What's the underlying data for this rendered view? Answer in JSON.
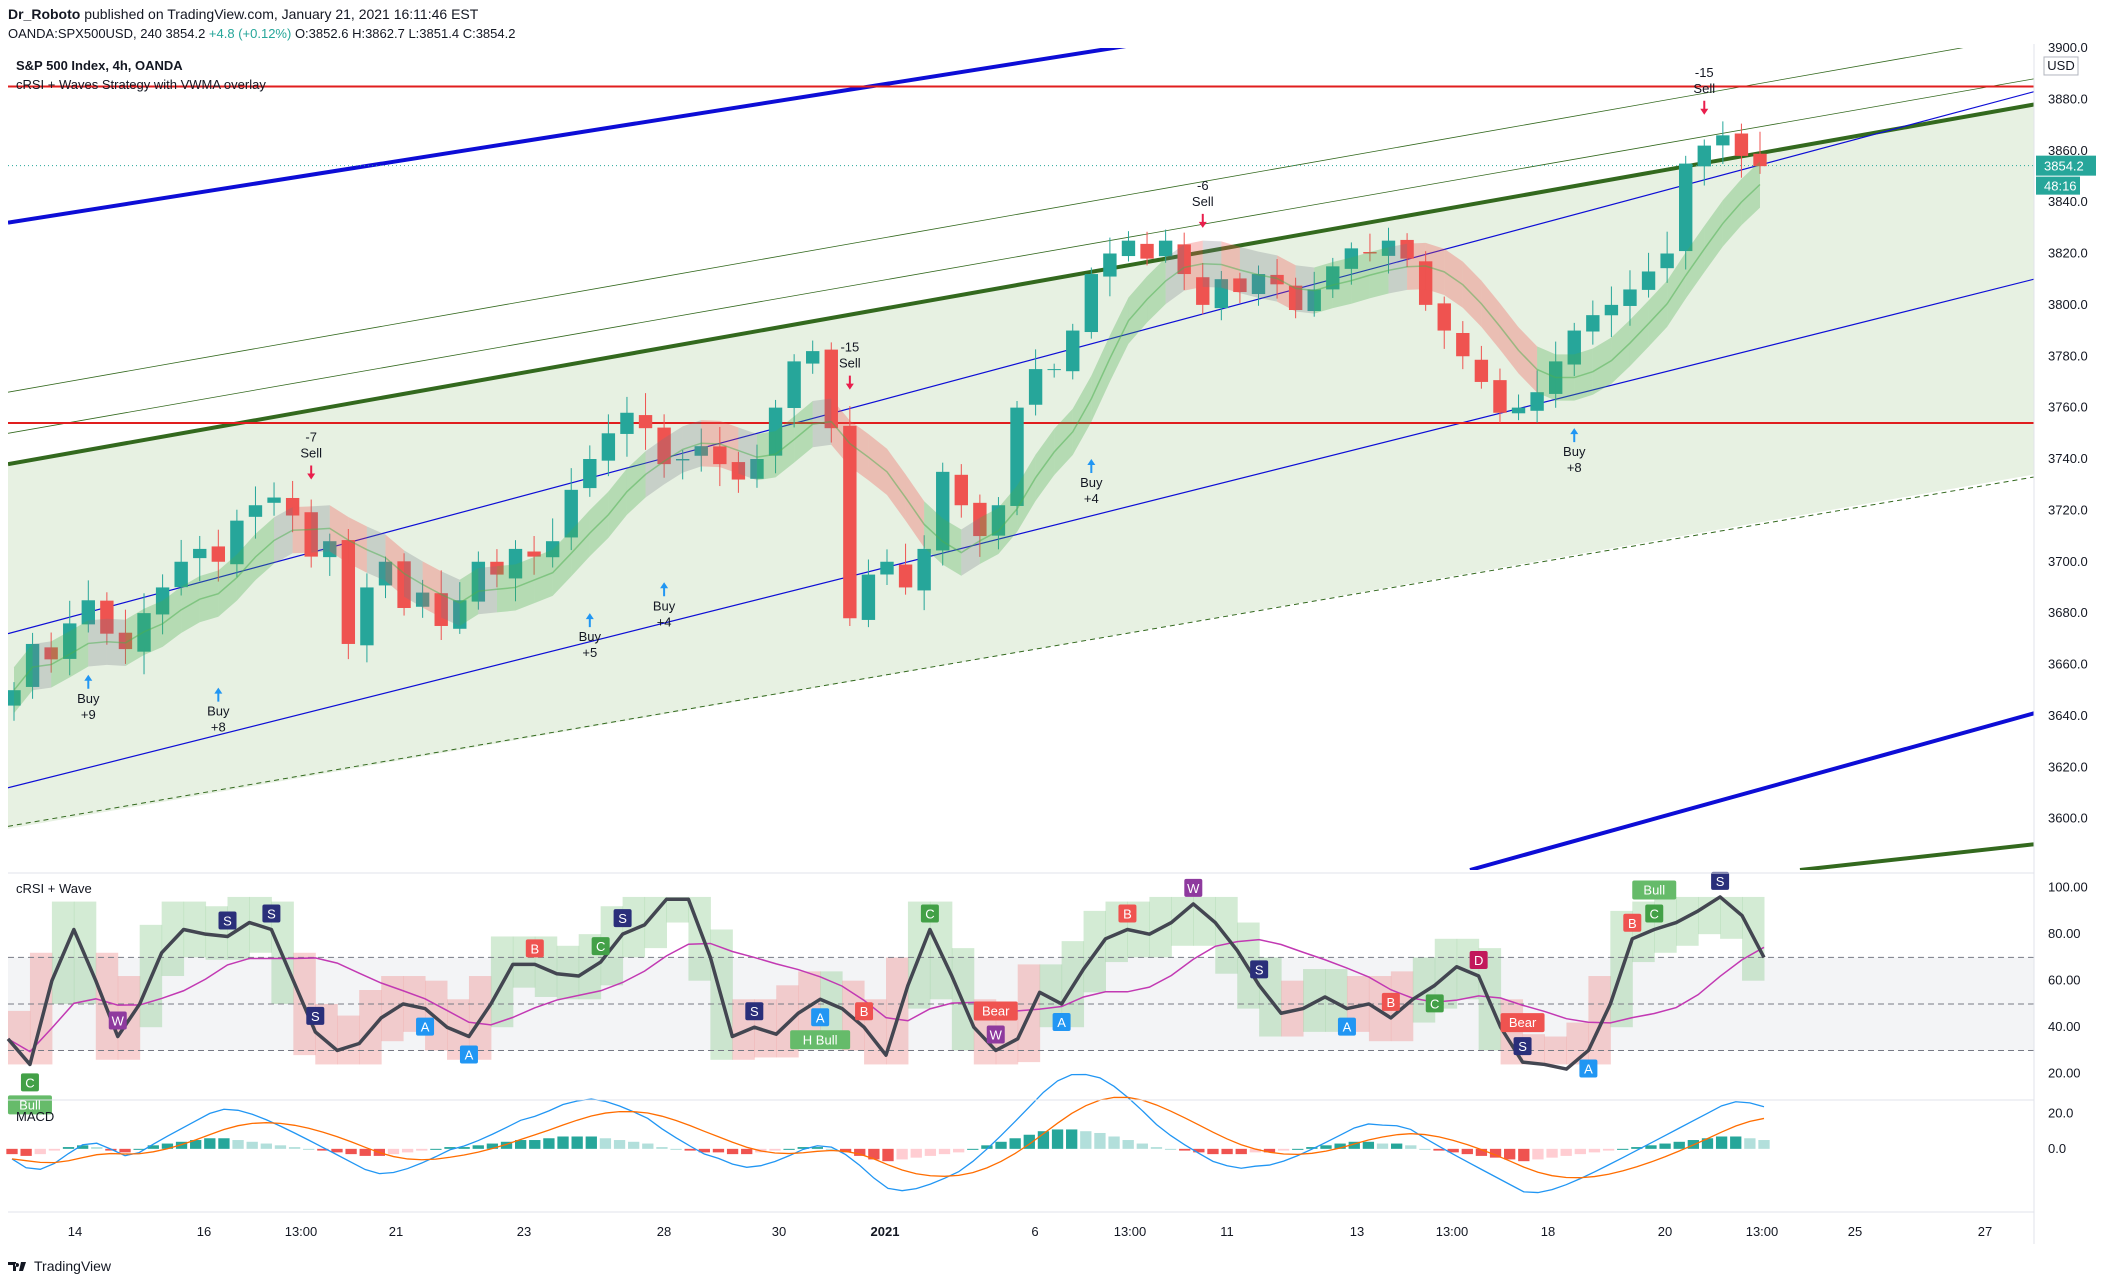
{
  "header": {
    "author": "Dr_Roboto",
    "published": "published on TradingView.com, January 21, 2021 16:11:46 EST",
    "symbol": "OANDA:SPX500USD, 240",
    "last": "3854.2",
    "change": "+4.8 (+0.12%)",
    "o_label": "O:",
    "o": "3852.6",
    "h_label": "H:",
    "h": "3862.7",
    "l_label": "L:",
    "l": "3851.4",
    "c_label": "C:",
    "c": "3854.2"
  },
  "brand": "TradingView",
  "colors": {
    "up": "#26a69a",
    "down": "#ef5350",
    "green_line": "#33691e",
    "blue_line": "#0d0dd6",
    "red_line": "#e01e1e"
  },
  "chart_data": [
    {
      "type": "candlestick",
      "title": "S&P 500 Index, 4h, OANDA",
      "subtitle": "cRSI + Waves Strategy with VWMA overlay",
      "y_unit": "USD",
      "ylim": [
        3580,
        3900
      ],
      "y_ticks": [
        "3600.0",
        "3620.0",
        "3640.0",
        "3660.0",
        "3680.0",
        "3700.0",
        "3720.0",
        "3740.0",
        "3760.0",
        "3780.0",
        "3800.0",
        "3820.0",
        "3840.0",
        "3860.0",
        "3880.0",
        "3900.0"
      ],
      "x_ticks": [
        "14",
        "16",
        "13:00",
        "21",
        "23",
        "28",
        "30",
        "2021",
        "6",
        "13:00",
        "11",
        "13",
        "13:00",
        "18",
        "20",
        "13:00",
        "25",
        "27"
      ],
      "price_label": "3854.2",
      "countdown": "48:16",
      "close_path": [
        3650,
        3668,
        3662,
        3676,
        3685,
        3672,
        3666,
        3680,
        3690,
        3700,
        3705,
        3700,
        3716,
        3722,
        3725,
        3718,
        3702,
        3708,
        3668,
        3690,
        3700,
        3682,
        3688,
        3675,
        3685,
        3700,
        3695,
        3705,
        3702,
        3708,
        3728,
        3740,
        3750,
        3758,
        3752,
        3738,
        3740,
        3745,
        3738,
        3732,
        3740,
        3760,
        3778,
        3782,
        3752,
        3678,
        3695,
        3700,
        3690,
        3705,
        3735,
        3722,
        3710,
        3722,
        3760,
        3775,
        3775,
        3790,
        3812,
        3820,
        3825,
        3818,
        3825,
        3812,
        3800,
        3810,
        3805,
        3812,
        3808,
        3798,
        3806,
        3815,
        3822,
        3820,
        3825,
        3818,
        3800,
        3790,
        3780,
        3770,
        3758,
        3760,
        3766,
        3778,
        3790,
        3796,
        3800,
        3806,
        3813,
        3820,
        3855,
        3862,
        3866,
        3858,
        3854
      ],
      "signals": [
        {
          "label": "Buy",
          "value": "+9",
          "type": "buy",
          "bar": 4,
          "price": 3656
        },
        {
          "label": "Buy",
          "value": "+8",
          "type": "buy",
          "bar": 11,
          "price": 3651
        },
        {
          "label": "Sell",
          "value": "-7",
          "type": "sell",
          "bar": 16,
          "price": 3732
        },
        {
          "label": "Buy",
          "value": "+5",
          "type": "buy",
          "bar": 31,
          "price": 3680
        },
        {
          "label": "Buy",
          "value": "+4",
          "type": "buy",
          "bar": 35,
          "price": 3692
        },
        {
          "label": "Sell",
          "value": "-15",
          "type": "sell",
          "bar": 45,
          "price": 3767
        },
        {
          "label": "Buy",
          "value": "+4",
          "type": "buy",
          "bar": 58,
          "price": 3740
        },
        {
          "label": "Sell",
          "value": "-6",
          "type": "sell",
          "bar": 64,
          "price": 3830
        },
        {
          "label": "Buy",
          "value": "+8",
          "type": "buy",
          "bar": 84,
          "price": 3752
        },
        {
          "label": "Sell",
          "value": "-15",
          "type": "sell",
          "bar": 91,
          "price": 3874
        }
      ]
    },
    {
      "type": "line",
      "title": "cRSI + Wave",
      "ylim": [
        10,
        105
      ],
      "y_ticks": [
        "20.00",
        "40.00",
        "60.00",
        "80.00",
        "100.00"
      ],
      "levels": [
        30,
        50,
        70
      ],
      "crsi": [
        35,
        24,
        60,
        82,
        60,
        36,
        50,
        72,
        82,
        80,
        79,
        85,
        82,
        60,
        38,
        30,
        33,
        44,
        50,
        48,
        40,
        36,
        50,
        67,
        67,
        63,
        62,
        68,
        80,
        84,
        95,
        95,
        70,
        36,
        40,
        37,
        46,
        52,
        48,
        40,
        28,
        58,
        82,
        62,
        40,
        30,
        35,
        55,
        50,
        65,
        78,
        82,
        80,
        85,
        93,
        85,
        73,
        58,
        46,
        48,
        53,
        48,
        50,
        44,
        52,
        58,
        66,
        62,
        40,
        25,
        24,
        22,
        30,
        50,
        78,
        82,
        85,
        90,
        96,
        88,
        70
      ],
      "markers": [
        {
          "glyph": "C",
          "caption": "Bull",
          "kind": "bull",
          "i": 1
        },
        {
          "glyph": "W",
          "caption": "",
          "kind": "wave",
          "i": 5
        },
        {
          "glyph": "S",
          "caption": "",
          "kind": "wave2",
          "i": 10
        },
        {
          "glyph": "S",
          "caption": "",
          "kind": "wave2",
          "i": 12
        },
        {
          "glyph": "S",
          "caption": "",
          "kind": "wave2",
          "i": 14
        },
        {
          "glyph": "A",
          "caption": "",
          "kind": "a",
          "i": 19
        },
        {
          "glyph": "A",
          "caption": "",
          "kind": "a",
          "i": 21
        },
        {
          "glyph": "B",
          "caption": "",
          "kind": "b",
          "i": 24
        },
        {
          "glyph": "C",
          "caption": "",
          "kind": "bull",
          "i": 27
        },
        {
          "glyph": "S",
          "caption": "",
          "kind": "wave2",
          "i": 28
        },
        {
          "glyph": "S",
          "caption": "",
          "kind": "wave2",
          "i": 34
        },
        {
          "glyph": "A",
          "caption": "H Bull",
          "kind": "a",
          "i": 37
        },
        {
          "glyph": "B",
          "caption": "",
          "kind": "b",
          "i": 39
        },
        {
          "glyph": "C",
          "caption": "",
          "kind": "bull",
          "i": 42
        },
        {
          "glyph": "W",
          "caption": "Bear",
          "kind": "wave",
          "i": 45
        },
        {
          "glyph": "A",
          "caption": "",
          "kind": "a",
          "i": 48
        },
        {
          "glyph": "B",
          "caption": "",
          "kind": "b",
          "i": 51
        },
        {
          "glyph": "W",
          "caption": "",
          "kind": "wave",
          "i": 54
        },
        {
          "glyph": "S",
          "caption": "",
          "kind": "wave2",
          "i": 57
        },
        {
          "glyph": "A",
          "caption": "",
          "kind": "a",
          "i": 61
        },
        {
          "glyph": "B",
          "caption": "",
          "kind": "b",
          "i": 63
        },
        {
          "glyph": "C",
          "caption": "",
          "kind": "bull",
          "i": 65
        },
        {
          "glyph": "D",
          "caption": "",
          "kind": "d",
          "i": 67
        },
        {
          "glyph": "S",
          "caption": "Bear",
          "kind": "wave2",
          "i": 69
        },
        {
          "glyph": "A",
          "caption": "",
          "kind": "a",
          "i": 72
        },
        {
          "glyph": "B",
          "caption": "",
          "kind": "b",
          "i": 74
        },
        {
          "glyph": "C",
          "caption": "Bull",
          "kind": "bull",
          "i": 75
        },
        {
          "glyph": "S",
          "caption": "",
          "kind": "wave2",
          "i": 78
        }
      ]
    },
    {
      "type": "bar",
      "title": "MACD",
      "ylim": [
        -12,
        26
      ],
      "y_ticks": [
        "0.0",
        "20.0"
      ],
      "histogram": [
        -3,
        -4,
        -3,
        -1,
        1,
        2,
        1,
        -1,
        -2,
        0,
        2,
        3,
        4,
        5,
        6,
        6,
        5,
        4,
        3,
        2,
        1,
        0,
        -1,
        -2,
        -3,
        -4,
        -4,
        -3,
        -2,
        -1,
        0,
        1,
        1,
        2,
        3,
        4,
        5,
        5,
        6,
        7,
        7,
        7,
        6,
        5,
        4,
        3,
        1,
        0,
        -1,
        -2,
        -2,
        -3,
        -3,
        -2,
        -1,
        0,
        1,
        1,
        0,
        -2,
        -4,
        -6,
        -7,
        -6,
        -5,
        -4,
        -3,
        -2,
        0,
        2,
        4,
        6,
        8,
        10,
        11,
        11,
        10,
        9,
        7,
        5,
        3,
        1,
        0,
        -1,
        -2,
        -3,
        -3,
        -3,
        -2,
        -2,
        -1,
        0,
        1,
        2,
        3,
        4,
        4,
        3,
        3,
        2,
        0,
        -1,
        -2,
        -3,
        -4,
        -5,
        -6,
        -7,
        -6,
        -5,
        -4,
        -3,
        -2,
        -1,
        0,
        1,
        2,
        3,
        4,
        5,
        6,
        7,
        7,
        6,
        5
      ]
    }
  ]
}
